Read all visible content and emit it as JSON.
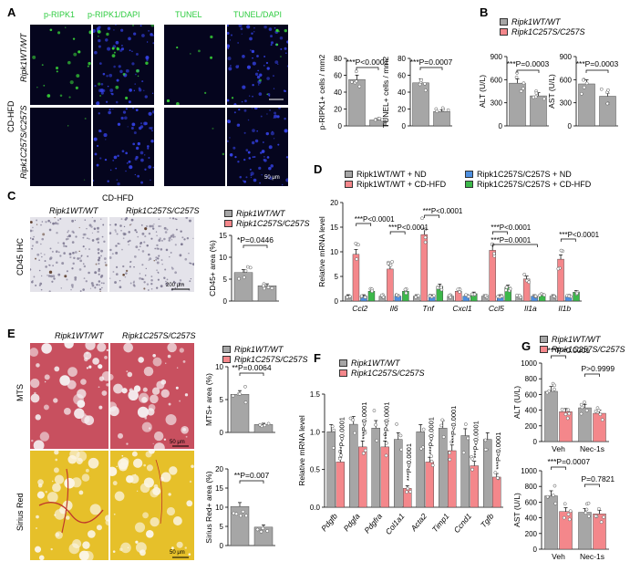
{
  "panels": {
    "A": "A",
    "B": "B",
    "C": "C",
    "D": "D",
    "E": "E",
    "F": "F",
    "G": "G"
  },
  "labels": {
    "p_ripk1": "p-RIPK1",
    "p_ripk1_dapi": "p-RIPK1/DAPI",
    "tunel": "TUNEL",
    "tunel_dapi": "TUNEL/DAPI",
    "cd_hfd": "CD-HFD",
    "geno_wt": "Ripk1WT/WT",
    "geno_mut": "Ripk1C257S/C257S",
    "scale_50": "50 μm",
    "scale_200": "200 μm",
    "cd45_ihc": "CD45 IHC",
    "mts": "MTS",
    "sirius": "Sirius Red"
  },
  "colors": {
    "wt": "#a6a6a6",
    "mut": "#f4878b",
    "wt_nd": "#a6a6a6",
    "wt_hfd": "#f4878b",
    "mut_nd": "#4d8fe0",
    "mut_hfd": "#3cb84a"
  },
  "legend_two": [
    "Ripk1WT/WT",
    "Ripk1C257S/C257S"
  ],
  "legend_four": [
    "Ripk1WT/WT + ND",
    "Ripk1WT/WT + CD-HFD",
    "Ripk1C257S/C257S + ND",
    "Ripk1C257S/C257S + CD-HFD"
  ],
  "chart_data": [
    {
      "id": "A1",
      "type": "bar",
      "categories": [
        "Ripk1WT/WT",
        "Ripk1C257S/C257S"
      ],
      "values": [
        55,
        7
      ],
      "ylabel": "p-RIPK1+ cells / mm2",
      "yticks": [
        0,
        20,
        40,
        60,
        80
      ],
      "ylim": [
        0,
        80
      ],
      "pvalue": "***P<0.0001"
    },
    {
      "id": "A2",
      "type": "bar",
      "categories": [
        "Ripk1WT/WT",
        "Ripk1C257S/C257S"
      ],
      "values": [
        51,
        17
      ],
      "ylabel": "TUNEL+ cells / mm2",
      "yticks": [
        0,
        20,
        40,
        60,
        80
      ],
      "ylim": [
        0,
        80
      ],
      "pvalue": "***P=0.0007"
    },
    {
      "id": "B1",
      "type": "bar",
      "categories": [
        "Ripk1WT/WT",
        "Ripk1C257S/C257S"
      ],
      "values": [
        555,
        390
      ],
      "ylabel": "ALT (U/L)",
      "yticks": [
        0,
        300,
        600,
        900
      ],
      "ylim": [
        0,
        900
      ],
      "pvalue": "***P=0.0003"
    },
    {
      "id": "B2",
      "type": "bar",
      "categories": [
        "Ripk1WT/WT",
        "Ripk1C257S/C257S"
      ],
      "values": [
        545,
        385
      ],
      "ylabel": "AST (U/L)",
      "yticks": [
        0,
        300,
        600,
        900
      ],
      "ylim": [
        0,
        900
      ],
      "pvalue": "***P=0.0003"
    },
    {
      "id": "C1",
      "type": "bar",
      "categories": [
        "Ripk1WT/WT",
        "Ripk1C257S/C257S"
      ],
      "values": [
        6.5,
        3.5
      ],
      "ylabel": "CD45+ area (%)",
      "yticks": [
        0,
        5,
        10,
        15
      ],
      "ylim": [
        0,
        15
      ],
      "pvalue": "*P=0.0446"
    },
    {
      "id": "D",
      "type": "bar",
      "categories": [
        "Ccl2",
        "Il6",
        "Tnf",
        "Cxcl1",
        "Ccl5",
        "Il1a",
        "Il1b"
      ],
      "series": [
        {
          "name": "Ripk1WT/WT + ND",
          "values": [
            1,
            1,
            1,
            1,
            1,
            1,
            1
          ]
        },
        {
          "name": "Ripk1WT/WT + CD-HFD",
          "values": [
            9.5,
            6.5,
            13.5,
            2,
            10.3,
            4.5,
            8.5
          ]
        },
        {
          "name": "Ripk1C257S/C257S + ND",
          "values": [
            1,
            1,
            1,
            1,
            1,
            1,
            1
          ]
        },
        {
          "name": "Ripk1C257S/C257S + CD-HFD",
          "values": [
            2,
            2,
            3,
            1.5,
            2.8,
            1.2,
            1.8
          ]
        }
      ],
      "ylabel": "Relative mRNA level",
      "yticks": [
        0,
        5,
        10,
        15,
        20
      ],
      "ylim": [
        0,
        20
      ],
      "pvalues": [
        "***P<0.0001",
        "***P<0.0001",
        "***P<0.0001",
        "***P<0.0001",
        "***P=0.0001",
        "***P<0.0001"
      ]
    },
    {
      "id": "E1",
      "type": "bar",
      "categories": [
        "Ripk1WT/WT",
        "Ripk1C257S/C257S"
      ],
      "values": [
        5.8,
        1.2
      ],
      "ylabel": "MTS+ area (%)",
      "yticks": [
        0,
        5,
        10
      ],
      "ylim": [
        0,
        10
      ],
      "pvalue": "**P=0.0064"
    },
    {
      "id": "E2",
      "type": "bar",
      "categories": [
        "Ripk1WT/WT",
        "Ripk1C257S/C257S"
      ],
      "values": [
        10.2,
        4.8
      ],
      "ylabel": "Sirius Red+ area (%)",
      "yticks": [
        0,
        5,
        10,
        15,
        20
      ],
      "ylim": [
        0,
        20
      ],
      "pvalue": "**P=0.007"
    },
    {
      "id": "F",
      "type": "bar",
      "categories": [
        "Pdgfb",
        "Pdgfa",
        "Pdgfra",
        "Col1a1",
        "Acta2",
        "Timp1",
        "Ccnd1",
        "Tgfb"
      ],
      "series": [
        {
          "name": "Ripk1WT/WT",
          "values": [
            1.0,
            1.1,
            1.05,
            0.9,
            1.0,
            1.05,
            0.95,
            0.9
          ]
        },
        {
          "name": "Ripk1C257S/C257S",
          "values": [
            0.6,
            0.8,
            0.8,
            0.25,
            0.6,
            0.75,
            0.55,
            0.4
          ]
        }
      ],
      "ylabel": "Relative mRNA level",
      "yticks": [
        0.0,
        0.5,
        1.0,
        1.5
      ],
      "ylim": [
        0,
        1.5
      ],
      "pvalues": [
        "***P<0.0001",
        "***P<0.0001",
        "***P<0.0001",
        "***P<0.0001",
        "***P<0.0001",
        "***P<0.0001",
        "***P<0.0001",
        "***P<0.0001"
      ]
    },
    {
      "id": "G1",
      "type": "bar",
      "categories": [
        "Veh",
        "Nec-1s"
      ],
      "series": [
        {
          "name": "Ripk1WT/WT",
          "values": [
            640,
            430
          ]
        },
        {
          "name": "Ripk1C257S/C257S",
          "values": [
            380,
            360
          ]
        }
      ],
      "ylabel": "ALT (U/L)",
      "yticks": [
        0,
        200,
        400,
        600,
        800,
        1000
      ],
      "ylim": [
        0,
        1000
      ],
      "pvalues": [
        "***P<0.0001",
        "P>0.9999"
      ]
    },
    {
      "id": "G2",
      "type": "bar",
      "categories": [
        "Veh",
        "Nec-1s"
      ],
      "series": [
        {
          "name": "Ripk1WT/WT",
          "values": [
            680,
            470
          ]
        },
        {
          "name": "Ripk1C257S/C257S",
          "values": [
            480,
            450
          ]
        }
      ],
      "ylabel": "AST (U/L)",
      "yticks": [
        0,
        200,
        400,
        600,
        800,
        1000
      ],
      "ylim": [
        0,
        1000
      ],
      "pvalues": [
        "***P=0.0007",
        "P=0.7821"
      ]
    }
  ]
}
